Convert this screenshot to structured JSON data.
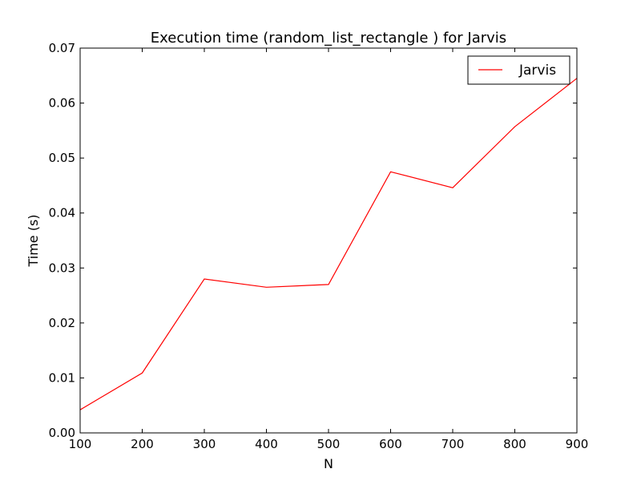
{
  "chart_data": {
    "type": "line",
    "title": "Execution time (random_list_rectangle ) for Jarvis",
    "xlabel": "N",
    "ylabel": "Time (s)",
    "xlim": [
      100,
      900
    ],
    "ylim": [
      0.0,
      0.07
    ],
    "x_ticks": [
      100,
      200,
      300,
      400,
      500,
      600,
      700,
      800,
      900
    ],
    "x_tick_labels": [
      "100",
      "200",
      "300",
      "400",
      "500",
      "600",
      "700",
      "800",
      "900"
    ],
    "y_ticks": [
      0.0,
      0.01,
      0.02,
      0.03,
      0.04,
      0.05,
      0.06,
      0.07
    ],
    "y_tick_labels": [
      "0.00",
      "0.01",
      "0.02",
      "0.03",
      "0.04",
      "0.05",
      "0.06",
      "0.07"
    ],
    "grid": false,
    "legend_position": "top-right",
    "series": [
      {
        "name": "Jarvis",
        "color": "#ff0000",
        "x": [
          100,
          200,
          300,
          400,
          500,
          600,
          700,
          800,
          900
        ],
        "y": [
          0.0042,
          0.0109,
          0.028,
          0.0265,
          0.027,
          0.0475,
          0.0446,
          0.0557,
          0.0645
        ]
      }
    ]
  }
}
